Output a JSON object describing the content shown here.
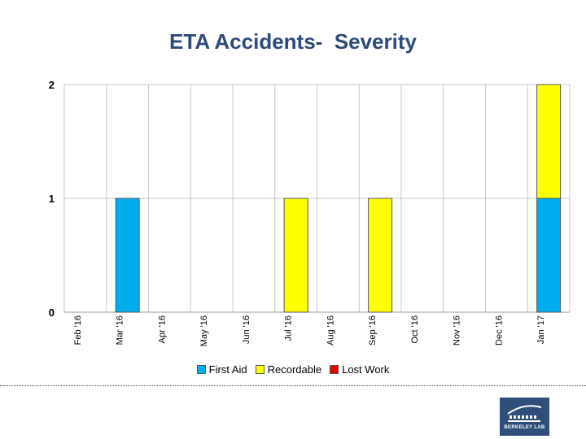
{
  "chart_data": {
    "type": "bar",
    "stacked": true,
    "title": "ETA Accidents-  Severity",
    "categories": [
      "Feb '16",
      "Mar '16",
      "Apr '16",
      "May '16",
      "Jun '16",
      "Jul '16",
      "Aug '16",
      "Sep '16",
      "Oct '16",
      "Nov '16",
      "Dec '16",
      "Jan '17"
    ],
    "series": [
      {
        "name": "First Aid",
        "color": "#00aeef",
        "values": [
          0,
          1,
          0,
          0,
          0,
          0,
          0,
          0,
          0,
          0,
          0,
          1
        ]
      },
      {
        "name": "Recordable",
        "color": "#ffff00",
        "values": [
          0,
          0,
          0,
          0,
          0,
          1,
          0,
          1,
          0,
          0,
          0,
          1
        ]
      },
      {
        "name": "Lost Work",
        "color": "#e60000",
        "values": [
          0,
          0,
          0,
          0,
          0,
          0,
          0,
          0,
          0,
          0,
          0,
          0
        ]
      }
    ],
    "ylim": [
      0,
      2
    ],
    "yticks": [
      0,
      1,
      2
    ],
    "grid": true,
    "legend": "bottom",
    "xlabel": "",
    "ylabel": ""
  },
  "logo": {
    "text": "BERKELEY LAB"
  }
}
